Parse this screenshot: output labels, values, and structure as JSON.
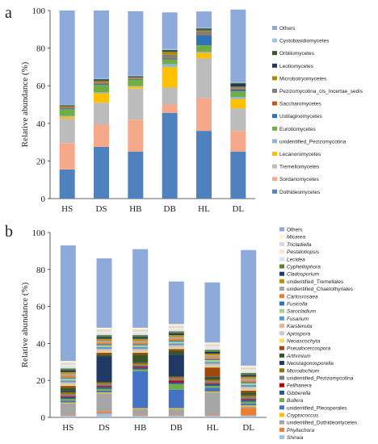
{
  "chart_data": [
    {
      "type": "bar",
      "stacked": true,
      "panel_label": "a",
      "ylabel": "Relative abundance (%)",
      "ylim": [
        0,
        100
      ],
      "yticks": [
        0,
        20,
        40,
        60,
        80,
        100
      ],
      "categories": [
        "HS",
        "DS",
        "HB",
        "DB",
        "HL",
        "DL"
      ],
      "legend_position": "right",
      "series": [
        {
          "name": "Dothideomycetes",
          "color": "#4e81bd",
          "values": [
            15.5,
            27.5,
            25,
            45.5,
            36,
            25
          ]
        },
        {
          "name": "Sordariomycetes",
          "color": "#f5a98a",
          "values": [
            14,
            12,
            17,
            4.5,
            17.5,
            11
          ]
        },
        {
          "name": "Tremellomycetes",
          "color": "#bcbcbc",
          "values": [
            13,
            11.5,
            16.5,
            9,
            21,
            12
          ]
        },
        {
          "name": "Lecanoromycetes",
          "color": "#ffc000",
          "values": [
            1,
            5,
            1,
            11,
            3,
            5
          ]
        },
        {
          "name": "unidentified_Pezizomycotina",
          "color": "#8db4e2",
          "values": [
            0.5,
            0.5,
            0.3,
            1.5,
            0.5,
            1
          ]
        },
        {
          "name": "Eurotiomycetes",
          "color": "#70ad47",
          "values": [
            3.5,
            4,
            3.5,
            2.5,
            3.5,
            3
          ]
        },
        {
          "name": "Ustilaginomycetes",
          "color": "#2f75b5",
          "values": [
            0.5,
            0.5,
            0.3,
            0.5,
            5.5,
            1
          ]
        },
        {
          "name": "Saccharomycetes",
          "color": "#c55a11",
          "values": [
            0.3,
            0.5,
            0.3,
            0.5,
            0.5,
            0.5
          ]
        },
        {
          "name": "Pezizomycotina_cls_Incertae_sedis",
          "color": "#7f7f7f",
          "values": [
            0.3,
            0.5,
            0.3,
            1.5,
            1.5,
            0.5
          ]
        },
        {
          "name": "Microbotryomycetes",
          "color": "#a88b00",
          "values": [
            0.5,
            0.5,
            0.3,
            1.5,
            0.5,
            0.5
          ]
        },
        {
          "name": "Leotiomycetes",
          "color": "#1f3864",
          "values": [
            0.3,
            0.5,
            0.3,
            0.5,
            0.5,
            1.5
          ]
        },
        {
          "name": "Orbiliomycetes",
          "color": "#375623",
          "values": [
            0.3,
            0.5,
            0.3,
            0.5,
            0.5,
            0.5
          ]
        },
        {
          "name": "Cystobasidiomycetes",
          "color": "#9dc3e6",
          "values": [
            0.3,
            0.5,
            0.3,
            0.5,
            0.5,
            0.5
          ]
        },
        {
          "name": "Others",
          "color": "#8eaadb",
          "values": [
            50,
            36,
            34.2,
            19.5,
            8.5,
            38.5
          ]
        }
      ]
    },
    {
      "type": "bar",
      "stacked": true,
      "panel_label": "b",
      "ylabel": "Relative abundance (%)",
      "ylim": [
        0,
        100
      ],
      "yticks": [
        0,
        20,
        40,
        60,
        80,
        100
      ],
      "categories": [
        "HS",
        "DS",
        "HB",
        "DB",
        "HL",
        "DL"
      ],
      "legend_position": "right",
      "series": [
        {
          "name": "Shiraia",
          "italic": true,
          "color": "#9dc3e6",
          "values": [
            1,
            2,
            1,
            1,
            1,
            1
          ]
        },
        {
          "name": "Phyllachora",
          "italic": true,
          "color": "#ed7d31",
          "values": [
            0.5,
            1,
            0.5,
            0.5,
            0.5,
            4
          ]
        },
        {
          "name": "unidentified_Dothideomycetes",
          "italic": false,
          "color": "#a5a5a5",
          "values": [
            6,
            10,
            3,
            3,
            12,
            1
          ]
        },
        {
          "name": "Cryptococcus",
          "italic": true,
          "color": "#ffc000",
          "values": [
            0.5,
            0.5,
            0.5,
            0.5,
            0.5,
            0.5
          ]
        },
        {
          "name": "unidentified_Pleosporales",
          "italic": false,
          "color": "#4472c4",
          "values": [
            1,
            1,
            20,
            10,
            2,
            1
          ]
        },
        {
          "name": "Bullera",
          "italic": true,
          "color": "#70ad47",
          "values": [
            1,
            1,
            1,
            3,
            1,
            1
          ]
        },
        {
          "name": "Gibberella",
          "italic": true,
          "color": "#2f5597",
          "values": [
            1,
            1,
            1,
            1,
            1,
            1
          ]
        },
        {
          "name": "Fellhanera",
          "italic": true,
          "color": "#c00000",
          "values": [
            0.5,
            0.5,
            0.5,
            1,
            0.5,
            0.5
          ]
        },
        {
          "name": "unidentified_Pezizomycotina",
          "italic": false,
          "color": "#808080",
          "values": [
            1,
            1,
            1,
            1,
            1,
            1
          ]
        },
        {
          "name": "Microdochium",
          "italic": true,
          "color": "#997300",
          "values": [
            1,
            1,
            1,
            1,
            1,
            1
          ]
        },
        {
          "name": "Neostagonosporella",
          "italic": true,
          "color": "#1f3864",
          "values": [
            0.5,
            14,
            0.5,
            12,
            0.5,
            0.5
          ]
        },
        {
          "name": "Arthrinium",
          "italic": true,
          "color": "#375623",
          "values": [
            2,
            1,
            4,
            2,
            1,
            1
          ]
        },
        {
          "name": "Pseudocercospora",
          "italic": true,
          "color": "#9e480e",
          "values": [
            1,
            1,
            1,
            1,
            5,
            1
          ]
        },
        {
          "name": "Neoascochyta",
          "italic": true,
          "color": "#ffd966",
          "values": [
            0.5,
            0.5,
            0.5,
            0.5,
            0.5,
            0.5
          ]
        },
        {
          "name": "Apiospora",
          "italic": true,
          "color": "#c9c9c9",
          "values": [
            1,
            1,
            1,
            1,
            1,
            1
          ]
        },
        {
          "name": "Karstenula",
          "italic": true,
          "color": "#f4b183",
          "values": [
            0.5,
            0.5,
            0.5,
            0.5,
            0.5,
            0.5
          ]
        },
        {
          "name": "Fusarium",
          "italic": true,
          "color": "#5b9bd5",
          "values": [
            1,
            1,
            1,
            1,
            1,
            1
          ]
        },
        {
          "name": "Sarocladium",
          "italic": true,
          "color": "#a9d18e",
          "values": [
            1,
            1,
            1,
            1,
            1,
            1
          ]
        },
        {
          "name": "Fusicolla",
          "italic": true,
          "color": "#2e75b6",
          "values": [
            0.5,
            0.5,
            0.5,
            0.5,
            0.5,
            0.5
          ]
        },
        {
          "name": "Carlosrosaea",
          "italic": true,
          "color": "#ed7d31",
          "values": [
            1,
            1,
            1,
            1,
            1,
            1
          ]
        },
        {
          "name": "unidentified_Chaetothyriales",
          "italic": false,
          "color": "#a5a5a5",
          "values": [
            1,
            1,
            1,
            1,
            1,
            1
          ]
        },
        {
          "name": "unidentified_Tremellales",
          "italic": false,
          "color": "#bf9000",
          "values": [
            1,
            1,
            1,
            1,
            1,
            1
          ]
        },
        {
          "name": "Cladosporium",
          "italic": true,
          "color": "#203864",
          "values": [
            1,
            1,
            1,
            1,
            1,
            1
          ]
        },
        {
          "name": "Cyphellophora",
          "italic": true,
          "color": "#548235",
          "values": [
            1,
            1,
            1,
            1,
            1,
            1
          ]
        },
        {
          "name": "Lecidea",
          "italic": true,
          "color": "#dae3f3",
          "values": [
            1,
            1,
            1,
            1,
            1,
            1
          ]
        },
        {
          "name": "Pestalotiopsis",
          "italic": true,
          "color": "#fbe5d6",
          "values": [
            1,
            1,
            1,
            1,
            1,
            1
          ]
        },
        {
          "name": "Tricladiella",
          "italic": true,
          "color": "#d9d9d9",
          "values": [
            1,
            1,
            1,
            1,
            1,
            1
          ]
        },
        {
          "name": "Micarea",
          "italic": true,
          "color": "#fff2cc",
          "values": [
            1,
            1,
            1,
            1,
            1,
            1
          ]
        },
        {
          "name": "Others",
          "italic": false,
          "color": "#8eaadb",
          "values": [
            62.5,
            37.5,
            42.5,
            23,
            32.5,
            62.5
          ]
        }
      ]
    }
  ]
}
